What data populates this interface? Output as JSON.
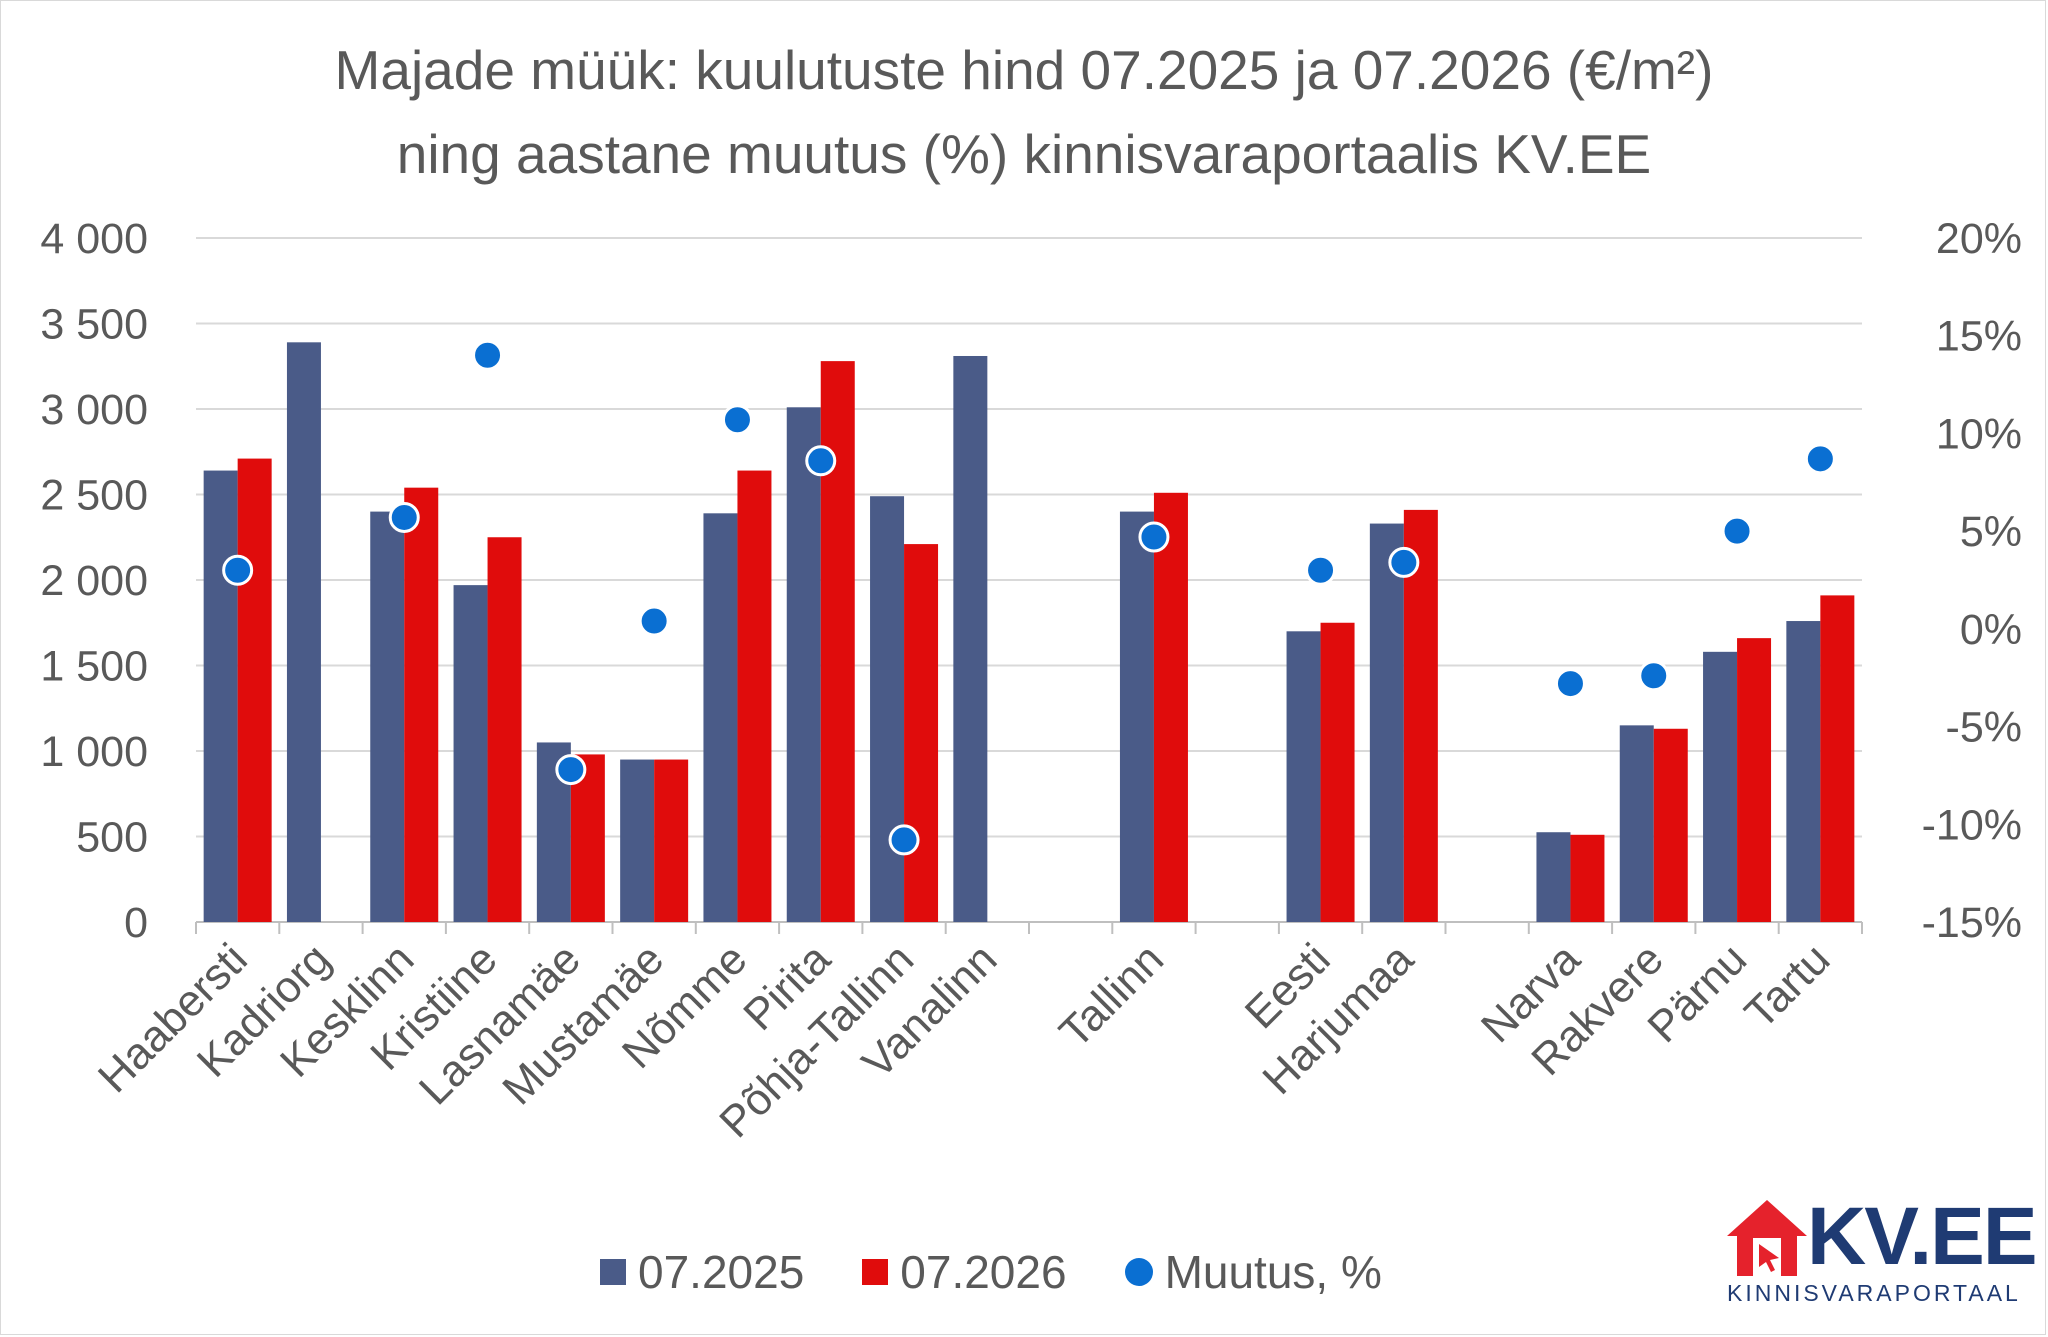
{
  "chart_data": {
    "type": "bar",
    "title_lines": [
      "Majade müük: kuulutuste hind 07.2025 ja 07.2026 (€/m²)",
      "ning aastane muutus (%) kinnisvaraportaalis KV.EE"
    ],
    "categories": [
      "Haabersti",
      "Kadriorg",
      "Kesklinn",
      "Kristiine",
      "Lasnamäe",
      "Mustamäe",
      "Nõmme",
      "Pirita",
      "Põhja-Tallinn",
      "Vanalinn",
      "",
      "Tallinn",
      "",
      "Eesti",
      "Harjumaa",
      "",
      "Narva",
      "Rakvere",
      "Pärnu",
      "Tartu"
    ],
    "series": [
      {
        "name": "07.2025",
        "color": "#4a5b88",
        "axis": "left",
        "values": [
          2640,
          3390,
          2400,
          1970,
          1050,
          950,
          2390,
          3010,
          2490,
          3310,
          null,
          2400,
          null,
          1700,
          2330,
          null,
          525,
          1150,
          1580,
          1760
        ]
      },
      {
        "name": "07.2026",
        "color": "#e00c0c",
        "axis": "left",
        "values": [
          2710,
          null,
          2540,
          2250,
          980,
          950,
          2640,
          3280,
          2210,
          null,
          null,
          2510,
          null,
          1750,
          2410,
          null,
          510,
          1130,
          1660,
          1910
        ]
      },
      {
        "name": "Muutus, %",
        "color": "#0a6fd2",
        "axis": "right",
        "type": "scatter",
        "values": [
          3.0,
          null,
          5.7,
          14.0,
          -7.2,
          0.4,
          10.7,
          8.6,
          -10.8,
          null,
          null,
          4.7,
          null,
          3.0,
          3.4,
          null,
          -2.8,
          -2.4,
          5.0,
          8.7
        ]
      }
    ],
    "ylim": [
      0,
      4000
    ],
    "yticks": [
      0,
      500,
      1000,
      1500,
      2000,
      2500,
      3000,
      3500,
      4000
    ],
    "ytick_labels": [
      "0",
      "500",
      "1 000",
      "1 500",
      "2 000",
      "2 500",
      "3 000",
      "3 500",
      "4 000"
    ],
    "y2lim": [
      -15,
      20
    ],
    "y2ticks": [
      -15,
      -10,
      -5,
      0,
      5,
      10,
      15,
      20
    ],
    "y2tick_labels": [
      "-15%",
      "-10%",
      "-5%",
      "0%",
      "5%",
      "10%",
      "15%",
      "20%"
    ],
    "grid": true,
    "legend_position": "bottom"
  },
  "logo": {
    "name": "KV.EE",
    "subtitle": "KINNISVARAPORTAAL",
    "brand_color": "#1f3b73",
    "accent_color": "#e5222c"
  }
}
